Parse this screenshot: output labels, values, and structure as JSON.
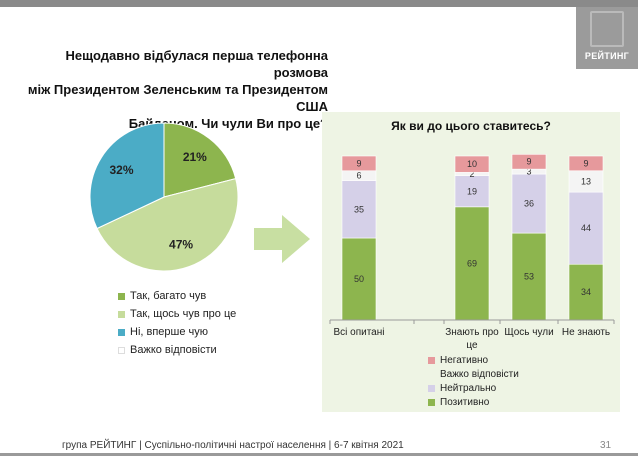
{
  "branding": {
    "logo_text": "РЕЙТИНГ"
  },
  "footer": {
    "text": "група РЕЙТИНГ | Суспільно-політичні настрої населення | 6-7 квітня 2021",
    "page_number": "31"
  },
  "colors": {
    "dark_green": "#8db54e",
    "light_green": "#c6dc9c",
    "teal": "#4bacc6",
    "white": "#ffffff",
    "negative": "#e6999c",
    "hard_to_say": "#f4f4f4",
    "neutral": "#d5d0e8",
    "positive": "#8db54e",
    "panel_bg": "#eef4e4",
    "arrow": "#c8dfa2"
  },
  "chart_data": [
    {
      "type": "pie",
      "title": "Нещодавно відбулася перша телефонна розмова між Президентом Зеленським та Президентом США Байденом. Чи чули Ви про це?",
      "title_lines": [
        "Нещодавно відбулася перша телефонна розмова",
        "між Президентом Зеленським та Президентом США",
        "Байденом. Чи чули Ви про це?"
      ],
      "slices": [
        {
          "label": "Так, багато чув",
          "value": 21,
          "display": "21%",
          "color": "#8db54e"
        },
        {
          "label": "Так, щось чув про це",
          "value": 47,
          "display": "47%",
          "color": "#c6dc9c"
        },
        {
          "label": "Ні, вперше чую",
          "value": 32,
          "display": "32%",
          "color": "#4bacc6"
        },
        {
          "label": "Важко відповісти",
          "value": 0,
          "display": "",
          "color": "#ffffff"
        }
      ],
      "legend_position": "bottom"
    },
    {
      "type": "bar",
      "stacked": true,
      "title": "Як ви до цього ставитесь?",
      "categories": [
        "Всі опитані",
        "Знають про це",
        "Щось чули",
        "Не знають"
      ],
      "category_lines": [
        [
          "Всі опитані"
        ],
        [
          "Знають про",
          "це"
        ],
        [
          "Щось чули"
        ],
        [
          "Не знають"
        ]
      ],
      "series": [
        {
          "name": "Позитивно",
          "values": [
            50,
            69,
            53,
            34
          ],
          "color": "#8db54e"
        },
        {
          "name": "Нейтрально",
          "values": [
            35,
            19,
            36,
            44
          ],
          "color": "#d5d0e8"
        },
        {
          "name": "Важко відповісти",
          "values": [
            6,
            2,
            3,
            13
          ],
          "color": "#f4f4f4"
        },
        {
          "name": "Негативно",
          "values": [
            9,
            10,
            9,
            9
          ],
          "color": "#e6999c"
        }
      ],
      "legend_order": [
        "Негативно",
        "Важко відповісти",
        "Нейтрально",
        "Позитивно"
      ],
      "ylim": [
        0,
        100
      ],
      "grid": false,
      "legend_position": "bottom"
    }
  ]
}
